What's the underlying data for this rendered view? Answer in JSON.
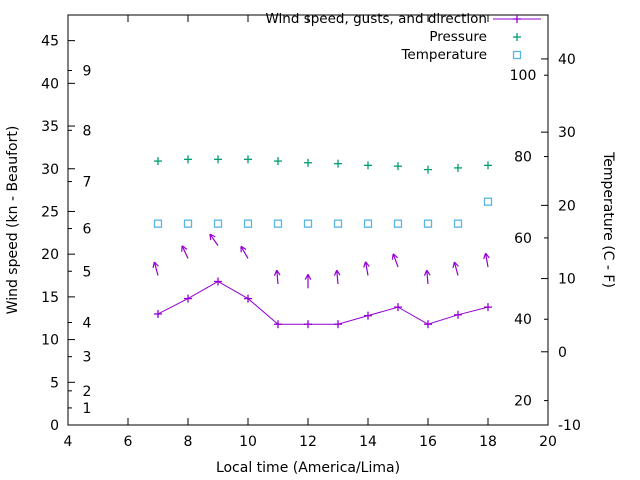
{
  "chart_data": {
    "type": "line",
    "title": "",
    "xlabel": "Local time (America/Lima)",
    "ylabel_left": "Wind speed (kn - Beaufort)",
    "ylabel_right": "Temperature (C - F)",
    "xlim": [
      4,
      20
    ],
    "x_ticks": [
      "4",
      "6",
      "8",
      "10",
      "12",
      "14",
      "16",
      "18",
      "20"
    ],
    "x_tick_values": [
      4,
      6,
      8,
      10,
      12,
      14,
      16,
      18,
      20
    ],
    "ylim_left_kn": [
      0,
      48
    ],
    "y_ticks_left_kn": [
      0,
      5,
      10,
      15,
      20,
      25,
      30,
      35,
      40,
      45
    ],
    "beaufort_ticks": [
      {
        "label": "1",
        "kn": 2
      },
      {
        "label": "2",
        "kn": 4
      },
      {
        "label": "3",
        "kn": 8
      },
      {
        "label": "4",
        "kn": 12
      },
      {
        "label": "5",
        "kn": 18
      },
      {
        "label": "6",
        "kn": 23
      },
      {
        "label": "7",
        "kn": 28.5
      },
      {
        "label": "8",
        "kn": 34.5
      },
      {
        "label": "9",
        "kn": 41.5
      }
    ],
    "ylim_right_c": [
      -10,
      46
    ],
    "y_ticks_right_c": [
      -10,
      0,
      10,
      20,
      30,
      40
    ],
    "fahrenheit_ticks": [
      20,
      40,
      60,
      80,
      100
    ],
    "x": [
      7,
      8,
      9,
      10,
      11,
      12,
      13,
      14,
      15,
      16,
      17,
      18
    ],
    "series": [
      {
        "name": "Wind speed (kn)",
        "key": "wind_speed_kn",
        "values": [
          13,
          14.8,
          16.8,
          14.8,
          11.8,
          11.8,
          11.8,
          12.8,
          13.8,
          11.8,
          12.9,
          13.8
        ]
      },
      {
        "name": "Gusts (kn) with direction arrows",
        "key": "gusts_kn",
        "values": [
          17.5,
          19.5,
          21,
          19.5,
          16.5,
          16,
          16.5,
          17.5,
          18.5,
          16.5,
          17.5,
          18.5
        ],
        "arrow_tilt_deg": [
          -15,
          -25,
          -35,
          -30,
          -5,
          0,
          -5,
          -10,
          -20,
          -5,
          -15,
          -10
        ]
      },
      {
        "name": "Pressure",
        "key": "pressure",
        "values": [
          30.9,
          31.1,
          31.1,
          31.1,
          30.9,
          30.7,
          30.6,
          30.4,
          30.3,
          29.9,
          30.1,
          30.4
        ]
      },
      {
        "name": "Temperature (C)",
        "key": "temperature_c",
        "axis": "right",
        "values": [
          17.5,
          17.5,
          17.5,
          17.5,
          17.5,
          17.5,
          17.5,
          17.5,
          17.5,
          17.5,
          17.5,
          20.5
        ]
      }
    ],
    "legend": [
      {
        "label": "Wind speed, gusts, and direction",
        "marker": "line-plus",
        "color": "#9400d3"
      },
      {
        "label": "Pressure",
        "marker": "plus",
        "color": "#009e73"
      },
      {
        "label": "Temperature",
        "marker": "square",
        "color": "#56b4e9"
      }
    ],
    "legend_position": "top-right-inside",
    "grid": false,
    "colors": {
      "wind": "#9400d3",
      "pressure": "#009e73",
      "temperature": "#56b4e9",
      "axis": "#000000",
      "background": "#ffffff"
    }
  }
}
